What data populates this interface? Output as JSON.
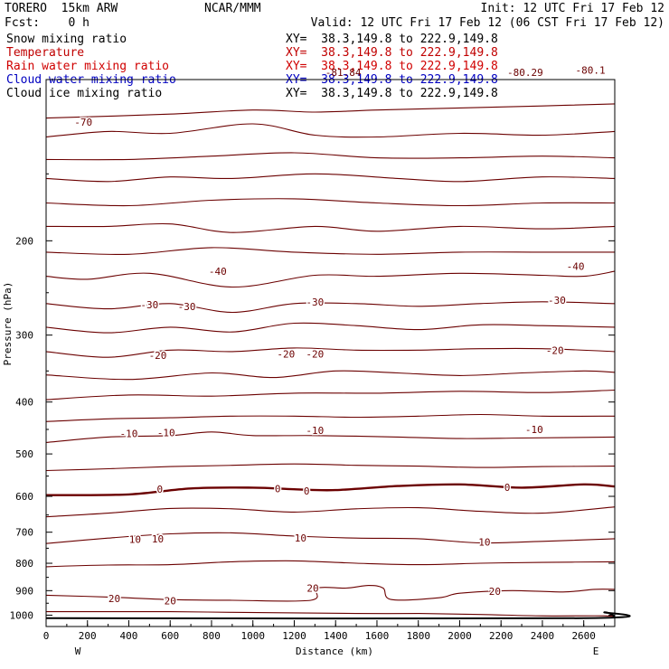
{
  "header": {
    "model": "TORERO  15km ARW",
    "center": "NCAR/MMM",
    "init": "Init: 12 UTC Fri 17 Feb 12",
    "fcst": "Fcst:    0 h",
    "valid": "Valid: 12 UTC Fri 17 Feb 12 (06 CST Fri 17 Feb 12)"
  },
  "fields": [
    {
      "name": "Snow mixing ratio",
      "xy": "XY=  38.3,149.8 to 222.9,149.8",
      "color": "#000000"
    },
    {
      "name": "Temperature",
      "xy": "XY=  38.3,149.8 to 222.9,149.8",
      "color": "#c00000"
    },
    {
      "name": "Rain water mixing ratio",
      "xy": "XY=  38.3,149.8 to 222.9,149.8",
      "color": "#d00000"
    },
    {
      "name": "Cloud water mixing ratio",
      "xy": "XY=  38.3,149.8 to 222.9,149.8",
      "color": "#0000c0"
    },
    {
      "name": "Cloud ice mixing ratio",
      "xy": "XY=  38.3,149.8 to 222.9,149.8",
      "color": "#000000"
    }
  ],
  "chart_data": {
    "type": "line",
    "subtype": "cross-section isotherms",
    "xlabel": "Distance (km)",
    "ylabel": "Pressure (hPa)",
    "xlim": [
      0,
      2750
    ],
    "ylim": [
      1050,
      100
    ],
    "ylog": true,
    "x_ticks": [
      "0",
      "200",
      "400",
      "600",
      "800",
      "1000",
      "1200",
      "1400",
      "1600",
      "1800",
      "2000",
      "2200",
      "2400",
      "2600"
    ],
    "y_ticks": [
      "200",
      "300",
      "400",
      "500",
      "600",
      "700",
      "800",
      "900",
      "1000"
    ],
    "x_end_labels": {
      "left": "W",
      "right": "E"
    },
    "top_labels": [
      "-81.84",
      "-80.29",
      "-80.1"
    ],
    "line_color": "#6b0000",
    "zero_isotherm_bold": true,
    "ground_color": "#000000",
    "isotherms": [
      {
        "x": [
          0,
          600,
          1000,
          1300,
          1600,
          2000,
          2400,
          2750
        ],
        "y": [
          118,
          116,
          114,
          115,
          114,
          113,
          112,
          111
        ]
      },
      {
        "x": [
          0,
          300,
          600,
          1000,
          1300,
          1600,
          2000,
          2400,
          2750
        ],
        "y": [
          128,
          125,
          126,
          121,
          127,
          128,
          126,
          127,
          125
        ]
      },
      {
        "x": [
          0,
          400,
          800,
          1200,
          1600,
          2000,
          2400,
          2750
        ],
        "y": [
          141,
          141,
          139,
          137,
          140,
          140,
          139,
          140
        ]
      },
      {
        "x": [
          0,
          300,
          600,
          900,
          1300,
          1700,
          2000,
          2400,
          2750
        ],
        "y": [
          153,
          155,
          152,
          153,
          150,
          153,
          155,
          152,
          153
        ]
      },
      {
        "x": [
          0,
          400,
          800,
          1200,
          1600,
          2000,
          2400,
          2750
        ],
        "y": [
          170,
          172,
          168,
          167,
          170,
          172,
          170,
          170
        ]
      },
      {
        "x": [
          0,
          300,
          600,
          900,
          1300,
          1600,
          2000,
          2400,
          2750
        ],
        "y": [
          188,
          188,
          186,
          193,
          188,
          192,
          188,
          190,
          188
        ]
      },
      {
        "x": [
          0,
          400,
          800,
          1200,
          1600,
          2000,
          2400,
          2750
        ],
        "y": [
          210,
          212,
          206,
          210,
          212,
          210,
          210,
          210
        ]
      },
      {
        "x": [
          0,
          200,
          500,
          900,
          1300,
          1600,
          2000,
          2400,
          2600,
          2750
        ],
        "y": [
          233,
          236,
          230,
          244,
          232,
          233,
          230,
          232,
          233,
          228
        ]
      },
      {
        "x": [
          0,
          300,
          600,
          900,
          1200,
          1500,
          1800,
          2100,
          2400,
          2750
        ],
        "y": [
          262,
          268,
          262,
          272,
          262,
          262,
          265,
          262,
          260,
          262
        ]
      },
      {
        "x": [
          0,
          300,
          600,
          900,
          1200,
          1500,
          1800,
          2100,
          2400,
          2750
        ],
        "y": [
          290,
          297,
          290,
          296,
          285,
          288,
          293,
          287,
          288,
          290
        ]
      },
      {
        "x": [
          0,
          300,
          600,
          900,
          1200,
          1500,
          1800,
          2100,
          2400,
          2750
        ],
        "y": [
          322,
          330,
          320,
          322,
          317,
          320,
          320,
          318,
          318,
          322
        ]
      },
      {
        "x": [
          0,
          400,
          800,
          1100,
          1400,
          1700,
          2000,
          2300,
          2600,
          2750
        ],
        "y": [
          356,
          363,
          353,
          360,
          350,
          353,
          357,
          353,
          350,
          352
        ]
      },
      {
        "x": [
          0,
          400,
          800,
          1200,
          1600,
          2000,
          2400,
          2750
        ],
        "y": [
          396,
          388,
          390,
          385,
          385,
          382,
          384,
          380
        ]
      },
      {
        "x": [
          0,
          300,
          600,
          900,
          1200,
          1500,
          1800,
          2100,
          2400,
          2750
        ],
        "y": [
          435,
          430,
          428,
          425,
          425,
          427,
          425,
          422,
          425,
          425
        ]
      },
      {
        "x": [
          0,
          300,
          600,
          800,
          1000,
          1300,
          1700,
          2000,
          2300,
          2750
        ],
        "y": [
          476,
          465,
          462,
          455,
          462,
          462,
          465,
          468,
          467,
          465
        ]
      },
      {
        "x": [
          0,
          300,
          600,
          900,
          1200,
          1500,
          1800,
          2100,
          2400,
          2750
        ],
        "y": [
          537,
          533,
          528,
          525,
          522,
          525,
          527,
          530,
          528,
          527
        ]
      },
      {
        "x": [
          0,
          400,
          700,
          1000,
          1200,
          1400,
          1700,
          2000,
          2300,
          2600,
          2750
        ],
        "y": [
          597,
          595,
          580,
          578,
          582,
          584,
          574,
          570,
          578,
          570,
          575
        ],
        "bold": true
      },
      {
        "x": [
          0,
          300,
          600,
          900,
          1200,
          1500,
          1800,
          2100,
          2400,
          2750
        ],
        "y": [
          655,
          645,
          632,
          633,
          642,
          633,
          630,
          640,
          645,
          628
        ]
      },
      {
        "x": [
          0,
          300,
          600,
          900,
          1200,
          1500,
          1800,
          2100,
          2400,
          2750
        ],
        "y": [
          735,
          718,
          705,
          702,
          712,
          718,
          720,
          733,
          728,
          720
        ]
      },
      {
        "x": [
          0,
          300,
          600,
          900,
          1200,
          1500,
          1800,
          2100,
          2400,
          2750
        ],
        "y": [
          812,
          806,
          805,
          795,
          792,
          800,
          805,
          800,
          797,
          795
        ]
      },
      {
        "x": [
          0,
          300,
          600,
          900,
          1280,
          1310,
          1450,
          1560,
          1630,
          1670,
          1900,
          2000,
          2250,
          2500,
          2650,
          2750
        ],
        "y": [
          918,
          925,
          935,
          938,
          938,
          890,
          890,
          880,
          890,
          935,
          928,
          910,
          900,
          905,
          895,
          895
        ]
      },
      {
        "x": [
          0,
          300,
          600,
          900,
          1200,
          1500,
          1800,
          2100,
          2400,
          2700,
          2750
        ],
        "y": [
          985,
          985,
          985,
          988,
          990,
          993,
          993,
          997,
          1003,
          1003,
          1010
        ]
      }
    ],
    "ground": {
      "x": [
        0,
        2600,
        2700,
        2750
      ],
      "y": [
        1013,
        1013,
        988,
        1005
      ]
    },
    "labels": [
      {
        "text": "-70",
        "x": 180,
        "y": 120
      },
      {
        "text": "-40",
        "x": 830,
        "y": 228
      },
      {
        "text": "-40",
        "x": 2560,
        "y": 223
      },
      {
        "text": "-30",
        "x": 500,
        "y": 263
      },
      {
        "text": "-30",
        "x": 680,
        "y": 265
      },
      {
        "text": "-30",
        "x": 1300,
        "y": 260
      },
      {
        "text": "-30",
        "x": 2470,
        "y": 258
      },
      {
        "text": "-20",
        "x": 540,
        "y": 327
      },
      {
        "text": "-20",
        "x": 1160,
        "y": 325
      },
      {
        "text": "-20",
        "x": 1300,
        "y": 325
      },
      {
        "text": "-20",
        "x": 2460,
        "y": 320
      },
      {
        "text": "-10",
        "x": 400,
        "y": 458
      },
      {
        "text": "-10",
        "x": 580,
        "y": 456
      },
      {
        "text": "-10",
        "x": 1300,
        "y": 452
      },
      {
        "text": "-10",
        "x": 2360,
        "y": 450
      },
      {
        "text": "0",
        "x": 550,
        "y": 582
      },
      {
        "text": "0",
        "x": 1120,
        "y": 580
      },
      {
        "text": "0",
        "x": 1260,
        "y": 586
      },
      {
        "text": "0",
        "x": 2230,
        "y": 577
      },
      {
        "text": "10",
        "x": 430,
        "y": 722
      },
      {
        "text": "10",
        "x": 540,
        "y": 720
      },
      {
        "text": "10",
        "x": 1230,
        "y": 718
      },
      {
        "text": "10",
        "x": 2120,
        "y": 730
      },
      {
        "text": "20",
        "x": 330,
        "y": 930
      },
      {
        "text": "20",
        "x": 600,
        "y": 940
      },
      {
        "text": "20",
        "x": 1290,
        "y": 890
      },
      {
        "text": "20",
        "x": 2170,
        "y": 902
      }
    ]
  }
}
